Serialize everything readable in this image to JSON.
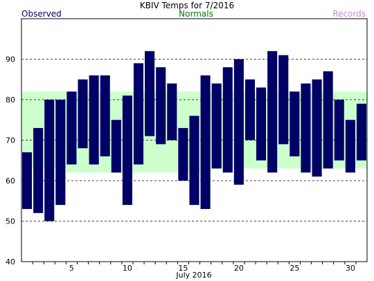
{
  "chart_data": {
    "type": "bar",
    "title": "KBIV Temps for 7/2016",
    "xlabel": "July 2016",
    "ylabel": "",
    "legend": [
      {
        "label": "Observed",
        "color": "#000066"
      },
      {
        "label": "Normals",
        "color": "#007700"
      },
      {
        "label": "Records",
        "color": "#cc88cc"
      }
    ],
    "colors": {
      "observed_bar": "#000066",
      "normal_band": "#ccffcc",
      "grid": "#000000"
    },
    "grid": "dashed horizontal",
    "ylim": [
      40,
      100
    ],
    "xlim": [
      0.5,
      31.5
    ],
    "y_ticks": [
      40,
      50,
      60,
      70,
      80,
      90
    ],
    "x_ticks": [
      5,
      10,
      15,
      20,
      25,
      30
    ],
    "days": [
      1,
      2,
      3,
      4,
      5,
      6,
      7,
      8,
      9,
      10,
      11,
      12,
      13,
      14,
      15,
      16,
      17,
      18,
      19,
      20,
      21,
      22,
      23,
      24,
      25,
      26,
      27,
      28,
      29,
      30,
      31
    ],
    "observed_low": [
      53,
      52,
      50,
      54,
      64,
      68,
      64,
      66,
      62,
      54,
      64,
      71,
      69,
      70,
      60,
      54,
      53,
      63,
      62,
      59,
      70,
      65,
      62,
      69,
      66,
      62,
      61,
      63,
      65,
      62,
      65
    ],
    "observed_high": [
      67,
      73,
      80,
      80,
      82,
      85,
      86,
      86,
      75,
      81,
      89,
      92,
      88,
      84,
      73,
      76,
      86,
      84,
      88,
      90,
      85,
      83,
      92,
      91,
      82,
      84,
      85,
      87,
      80,
      75,
      79
    ],
    "normal_low": [
      63,
      63,
      63,
      63,
      62,
      62,
      62,
      62,
      62,
      62,
      62,
      62,
      62,
      62,
      62,
      62,
      62,
      63,
      63,
      63,
      63,
      63,
      63,
      63,
      63,
      63,
      63,
      63,
      63,
      63,
      63
    ],
    "normal_high": [
      82,
      82,
      82,
      82,
      82,
      82,
      82,
      82,
      82,
      82,
      82,
      82,
      82,
      82,
      82,
      82,
      82,
      82,
      82,
      82,
      82,
      82,
      82,
      82,
      82,
      82,
      82,
      82,
      82,
      82,
      82
    ]
  }
}
